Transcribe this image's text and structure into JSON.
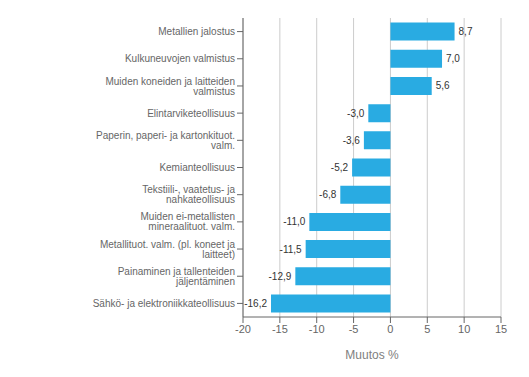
{
  "chart_data": {
    "type": "bar",
    "orientation": "horizontal",
    "categories": [
      "Sähkö- ja elektroniikkateollisuus",
      "Painaminen ja tallenteiden jäljentäminen",
      "Metallituot. valm. (pl. koneet ja laitteet)",
      "Muiden ei-metallisten mineraalituot. valm.",
      "Tekstiili-, vaatetus- ja nahkateollisuus",
      "Kemianteollisuus",
      "Paperin, paperi- ja kartonkituot. valm.",
      "Elintarviketeollisuus",
      "Muiden koneiden ja laitteiden valmistus",
      "Kulkuneuvojen valmistus",
      "Metallien jalostus"
    ],
    "values": [
      -16.2,
      -12.9,
      -11.5,
      -11.0,
      -6.8,
      -5.2,
      -3.6,
      -3.0,
      5.6,
      7.0,
      8.7
    ],
    "value_labels": [
      "-16,2",
      "-12,9",
      "-11,5",
      "-11,0",
      "-6,8",
      "-5,2",
      "-3,6",
      "-3,0",
      "5,6",
      "7,0",
      "8,7"
    ],
    "color": "#29abe2",
    "xlabel": "Muutos %",
    "xlim": [
      -20,
      15
    ],
    "xticks": [
      -20,
      -15,
      -10,
      -5,
      0,
      5,
      10,
      15
    ],
    "grid": true,
    "data_labels": true
  }
}
